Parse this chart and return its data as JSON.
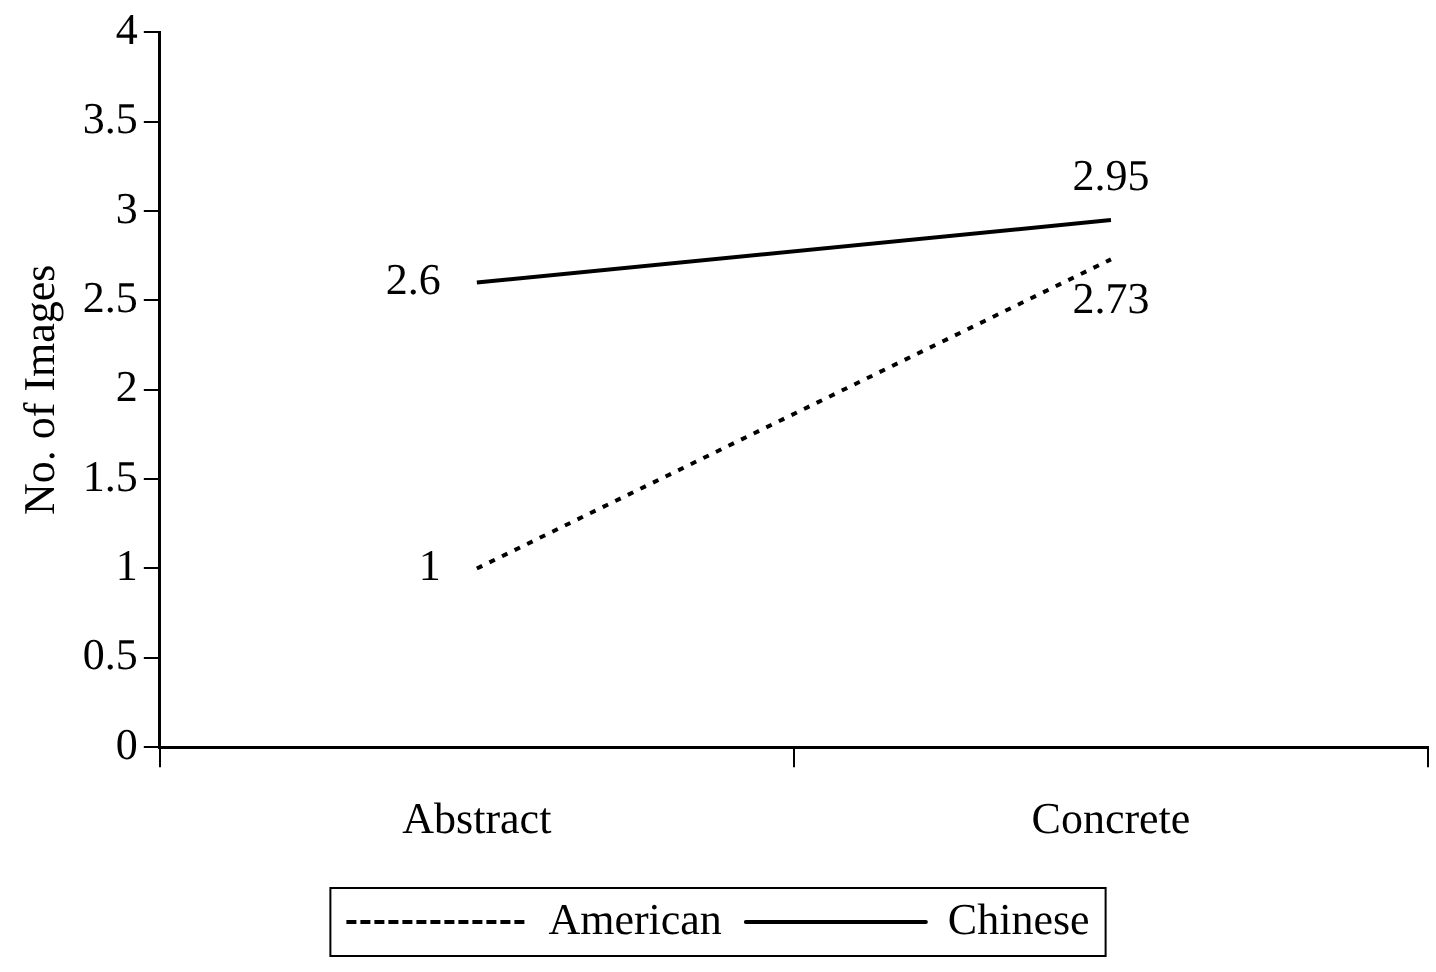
{
  "chart_data": {
    "type": "line",
    "ylabel": "No. of Images",
    "categories": [
      "Abstract",
      "Concrete"
    ],
    "series": [
      {
        "name": "American",
        "color": "#000000",
        "values": [
          1,
          2.73
        ],
        "line_style": "dotted"
      },
      {
        "name": "Chinese",
        "color": "#000000",
        "values": [
          2.6,
          2.95
        ],
        "line_style": "solid"
      }
    ],
    "ylim": [
      0,
      4
    ],
    "yticks": [
      0,
      0.5,
      1,
      1.5,
      2,
      2.5,
      3,
      3.5,
      4
    ],
    "grid": false,
    "legend": "bottom",
    "marker": "none",
    "data_labels": true
  }
}
